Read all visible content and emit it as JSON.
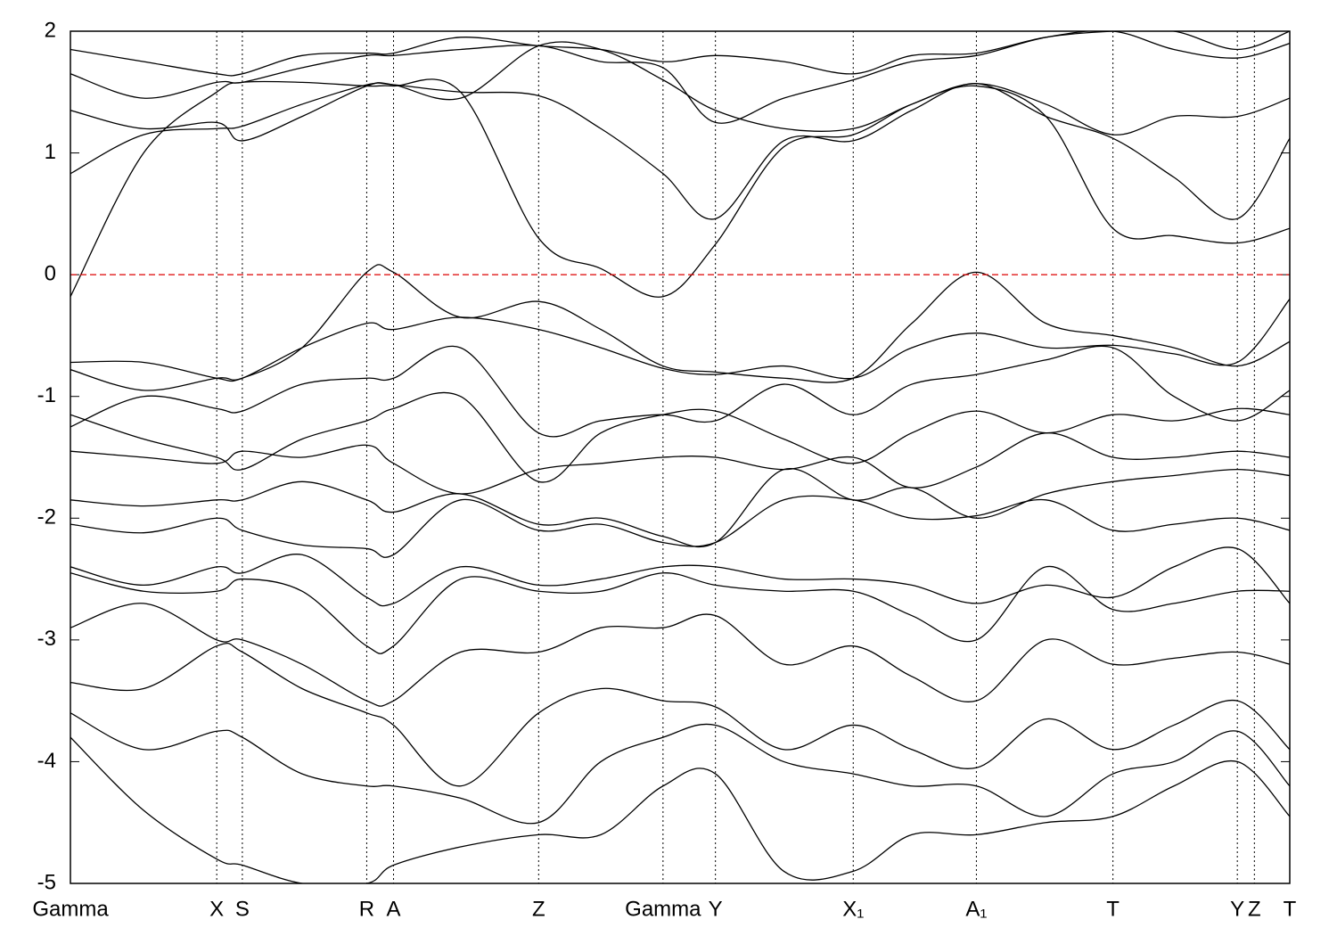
{
  "chart_data": {
    "type": "line",
    "line_color": "#000000",
    "reference_line": {
      "value": 0,
      "color": "#dd0000",
      "dashed": true
    },
    "xlim": [
      0,
      1
    ],
    "ylim": [
      -5,
      2
    ],
    "yticks": [
      2,
      1,
      0,
      -1,
      -2,
      -3,
      -4,
      -5
    ],
    "xticks": [
      {
        "value": 0,
        "label": "Gamma"
      },
      {
        "value": 0.12,
        "label": "X"
      },
      {
        "value": 0.141,
        "label": "S"
      },
      {
        "value": 0.243,
        "label": "R"
      },
      {
        "value": 0.265,
        "label": "A"
      },
      {
        "value": 0.384,
        "label": "Z"
      },
      {
        "value": 0.486,
        "label": "Gamma"
      },
      {
        "value": 0.529,
        "label": "Y"
      },
      {
        "value": 0.642,
        "label": "X₁"
      },
      {
        "value": 0.743,
        "label": "A₁"
      },
      {
        "value": 0.855,
        "label": "T"
      },
      {
        "value": 0.957,
        "label": "Y"
      },
      {
        "value": 0.971,
        "label": "Z"
      },
      {
        "value": 1,
        "label": "T"
      }
    ],
    "grid": "x-dotted",
    "x": [
      0,
      0.06,
      0.12,
      0.141,
      0.19,
      0.243,
      0.265,
      0.32,
      0.384,
      0.435,
      0.486,
      0.529,
      0.585,
      0.642,
      0.69,
      0.743,
      0.8,
      0.855,
      0.905,
      0.957,
      1
    ],
    "series": [
      {
        "values": [
          -0.18,
          1.0,
          1.5,
          1.58,
          1.58,
          1.55,
          1.55,
          1.5,
          0.3,
          0.05,
          -0.18,
          0.25,
          1.05,
          1.15,
          1.4,
          1.55,
          1.3,
          0.38,
          0.32,
          0.26,
          0.38
        ]
      },
      {
        "values": [
          0.83,
          1.15,
          1.2,
          1.22,
          1.4,
          1.56,
          1.56,
          1.5,
          1.47,
          1.2,
          0.83,
          0.46,
          1.1,
          1.1,
          1.35,
          1.57,
          1.3,
          1.12,
          0.8,
          0.46,
          1.12
        ]
      },
      {
        "values": [
          1.35,
          1.2,
          1.25,
          1.1,
          1.3,
          1.55,
          1.56,
          1.45,
          1.88,
          1.85,
          1.6,
          1.35,
          1.2,
          1.2,
          1.4,
          1.57,
          1.4,
          1.15,
          1.3,
          1.3,
          1.45
        ]
      },
      {
        "values": [
          1.65,
          1.45,
          1.58,
          1.58,
          1.7,
          1.8,
          1.8,
          1.85,
          1.88,
          1.75,
          1.7,
          1.25,
          1.45,
          1.6,
          1.75,
          1.8,
          1.95,
          2.0,
          1.85,
          1.78,
          1.9
        ]
      },
      {
        "values": [
          1.85,
          1.75,
          1.65,
          1.65,
          1.8,
          1.82,
          1.82,
          1.95,
          1.88,
          1.85,
          1.75,
          1.8,
          1.75,
          1.65,
          1.8,
          1.82,
          1.95,
          2.0,
          2.0,
          1.85,
          2.0
        ]
      },
      {
        "values": [
          -0.72,
          -0.72,
          -0.85,
          -0.85,
          -0.6,
          0.02,
          0.02,
          -0.35,
          -0.22,
          -0.45,
          -0.75,
          -0.8,
          -0.85,
          -0.85,
          -0.4,
          0.02,
          -0.4,
          -0.5,
          -0.6,
          -0.75,
          -0.55
        ]
      },
      {
        "values": [
          -0.78,
          -0.95,
          -0.85,
          -0.85,
          -0.6,
          -0.4,
          -0.45,
          -0.35,
          -0.45,
          -0.6,
          -0.77,
          -0.82,
          -0.75,
          -0.85,
          -0.6,
          -0.48,
          -0.6,
          -0.58,
          -0.65,
          -0.72,
          -0.2
        ]
      },
      {
        "values": [
          -1.25,
          -1.0,
          -1.1,
          -1.12,
          -0.9,
          -0.85,
          -0.85,
          -0.6,
          -1.3,
          -1.2,
          -1.15,
          -1.2,
          -0.9,
          -1.15,
          -0.9,
          -0.82,
          -0.7,
          -0.6,
          -1.0,
          -1.2,
          -0.95
        ]
      },
      {
        "values": [
          -1.15,
          -1.35,
          -1.5,
          -1.6,
          -1.35,
          -1.2,
          -1.1,
          -1.0,
          -1.7,
          -1.3,
          -1.15,
          -1.12,
          -1.35,
          -1.55,
          -1.3,
          -1.12,
          -1.3,
          -1.15,
          -1.2,
          -1.1,
          -1.15
        ]
      },
      {
        "values": [
          -1.45,
          -1.5,
          -1.55,
          -1.45,
          -1.5,
          -1.4,
          -1.55,
          -1.8,
          -1.6,
          -1.55,
          -1.5,
          -1.5,
          -1.6,
          -1.5,
          -1.75,
          -1.58,
          -1.3,
          -1.5,
          -1.5,
          -1.45,
          -1.5
        ]
      },
      {
        "values": [
          -1.85,
          -1.9,
          -1.85,
          -1.85,
          -1.7,
          -1.85,
          -1.95,
          -1.8,
          -2.05,
          -2.0,
          -2.15,
          -2.2,
          -1.6,
          -1.85,
          -1.75,
          -2.0,
          -1.8,
          -1.7,
          -1.65,
          -1.6,
          -1.65
        ]
      },
      {
        "values": [
          -2.05,
          -2.12,
          -2.0,
          -2.1,
          -2.22,
          -2.25,
          -2.3,
          -1.85,
          -2.1,
          -2.05,
          -2.2,
          -2.2,
          -1.85,
          -1.85,
          -2.0,
          -1.98,
          -1.85,
          -2.1,
          -2.05,
          -2.0,
          -2.1
        ]
      },
      {
        "values": [
          -2.4,
          -2.55,
          -2.4,
          -2.45,
          -2.3,
          -2.65,
          -2.7,
          -2.4,
          -2.55,
          -2.5,
          -2.4,
          -2.4,
          -2.5,
          -2.5,
          -2.55,
          -2.7,
          -2.55,
          -2.65,
          -2.4,
          -2.25,
          -2.7
        ]
      },
      {
        "values": [
          -2.45,
          -2.6,
          -2.6,
          -2.5,
          -2.6,
          -3.05,
          -3.05,
          -2.5,
          -2.6,
          -2.6,
          -2.45,
          -2.55,
          -2.6,
          -2.6,
          -2.8,
          -3.0,
          -2.4,
          -2.75,
          -2.7,
          -2.6,
          -2.6
        ]
      },
      {
        "values": [
          -2.9,
          -2.7,
          -3.0,
          -3.0,
          -3.2,
          -3.5,
          -3.5,
          -3.1,
          -3.1,
          -2.9,
          -2.9,
          -2.8,
          -3.2,
          -3.05,
          -3.3,
          -3.5,
          -3.0,
          -3.2,
          -3.15,
          -3.1,
          -3.2
        ]
      },
      {
        "values": [
          -3.35,
          -3.4,
          -3.05,
          -3.1,
          -3.4,
          -3.6,
          -3.7,
          -4.2,
          -3.6,
          -3.4,
          -3.5,
          -3.55,
          -3.9,
          -3.7,
          -3.9,
          -4.05,
          -3.65,
          -3.9,
          -3.7,
          -3.5,
          -3.9
        ]
      },
      {
        "values": [
          -3.6,
          -3.9,
          -3.75,
          -3.8,
          -4.1,
          -4.2,
          -4.2,
          -4.3,
          -4.5,
          -4.0,
          -3.8,
          -3.7,
          -4.0,
          -4.1,
          -4.2,
          -4.2,
          -4.45,
          -4.1,
          -4.0,
          -3.75,
          -4.2
        ]
      },
      {
        "values": [
          -3.8,
          -4.4,
          -4.8,
          -4.85,
          -5.0,
          -5.0,
          -4.85,
          -4.7,
          -4.6,
          -4.6,
          -4.2,
          -4.1,
          -4.9,
          -4.9,
          -4.6,
          -4.6,
          -4.5,
          -4.45,
          -4.2,
          -4.0,
          -4.45
        ]
      }
    ]
  }
}
